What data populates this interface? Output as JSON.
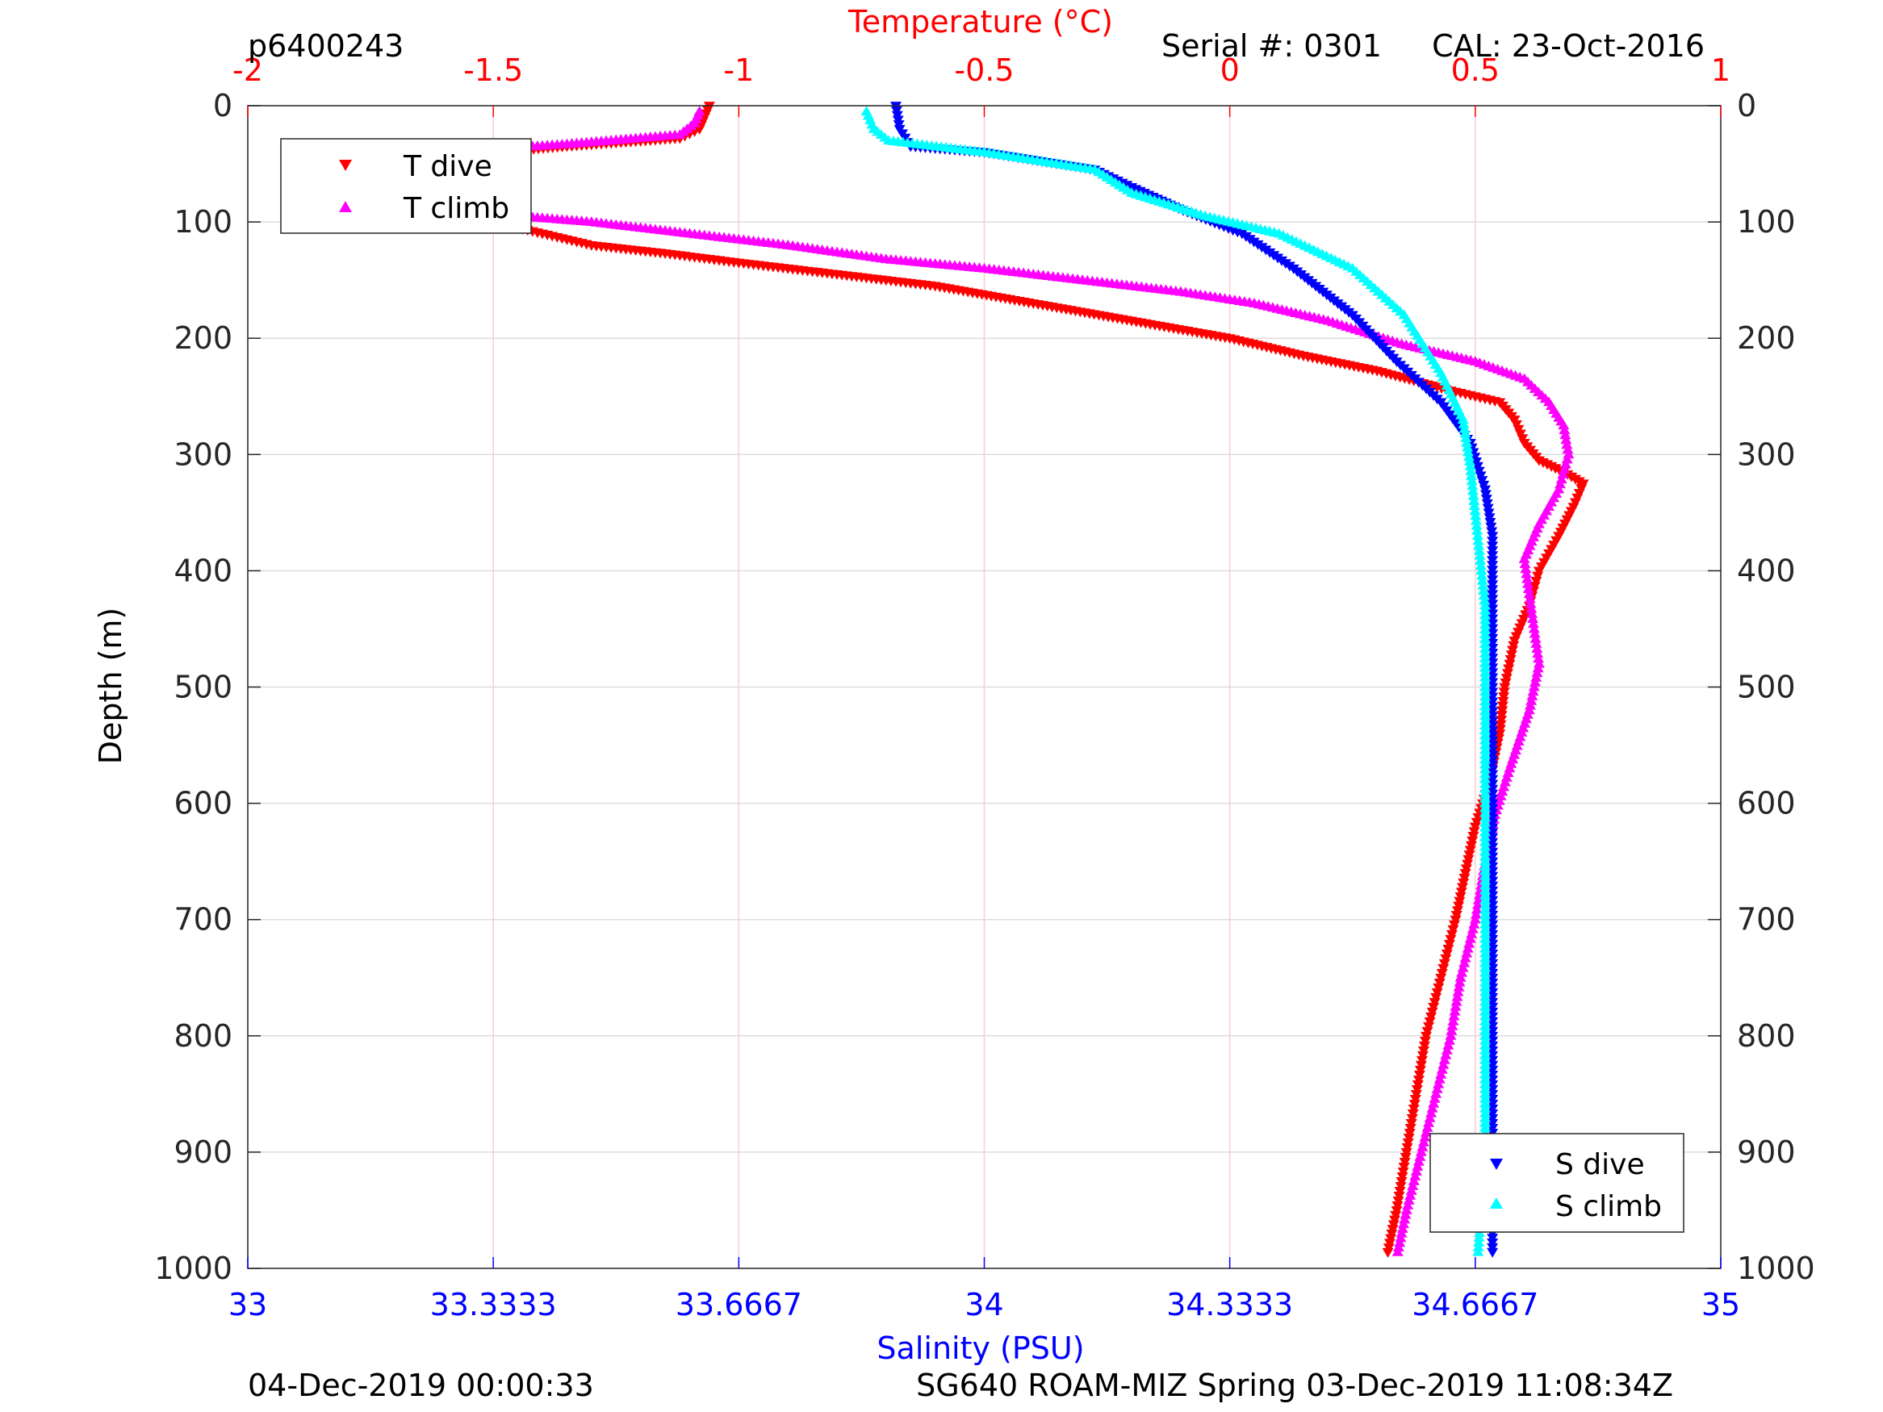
{
  "chart_data": {
    "type": "scatter",
    "figure_id": "p6400243",
    "serial": "Serial #: 0301",
    "calibration": "CAL: 23-Oct-2016",
    "footer_left": "04-Dec-2019 00:00:33",
    "footer_right": "SG640 ROAM-MIZ Spring 03-Dec-2019 11:08:34Z",
    "ylabel": "Depth (m)",
    "ylim": [
      0,
      1000
    ],
    "y_reversed": true,
    "y_ticks": [
      "0",
      "100",
      "200",
      "300",
      "400",
      "500",
      "600",
      "700",
      "800",
      "900",
      "1000"
    ],
    "y_tick_values": [
      0,
      100,
      200,
      300,
      400,
      500,
      600,
      700,
      800,
      900,
      1000
    ],
    "temperature_axis": {
      "label": "Temperature (°C)",
      "position": "top",
      "color": "#ff0000",
      "xlim": [
        -2,
        1
      ],
      "ticks": [
        "-2",
        "-1.5",
        "-1",
        "-0.5",
        "0",
        "0.5",
        "1"
      ],
      "tick_values": [
        -2,
        -1.5,
        -1,
        -0.5,
        0,
        0.5,
        1
      ],
      "grid": true
    },
    "salinity_axis": {
      "label": "Salinity (PSU)",
      "position": "bottom",
      "color": "#0000ff",
      "xlim": [
        33,
        35
      ],
      "ticks": [
        "33",
        "33.3333",
        "33.6667",
        "34",
        "34.3333",
        "34.6667",
        "35"
      ],
      "tick_values": [
        33,
        33.3333,
        33.6667,
        34,
        34.3333,
        34.6667,
        35
      ]
    },
    "legend_temperature": {
      "placement": "top-left",
      "entries": [
        "T dive",
        "T climb"
      ]
    },
    "legend_salinity": {
      "placement": "bottom-right",
      "entries": [
        "S dive",
        "S climb"
      ]
    },
    "series": [
      {
        "name": "T dive",
        "axis": "temperature",
        "color": "#ff0000",
        "marker": "triangle-down",
        "points": [
          [
            -1.06,
            0
          ],
          [
            -1.07,
            10
          ],
          [
            -1.08,
            20
          ],
          [
            -1.12,
            28
          ],
          [
            -1.35,
            35
          ],
          [
            -1.65,
            45
          ],
          [
            -1.72,
            52
          ],
          [
            -1.7,
            62
          ],
          [
            -1.68,
            70
          ],
          [
            -1.66,
            80
          ],
          [
            -1.6,
            92
          ],
          [
            -1.5,
            100
          ],
          [
            -1.4,
            110
          ],
          [
            -1.3,
            120
          ],
          [
            -1.15,
            127
          ],
          [
            -1,
            135
          ],
          [
            -0.8,
            145
          ],
          [
            -0.6,
            155
          ],
          [
            -0.4,
            170
          ],
          [
            -0.2,
            185
          ],
          [
            0,
            200
          ],
          [
            0.15,
            215
          ],
          [
            0.3,
            228
          ],
          [
            0.45,
            245
          ],
          [
            0.55,
            255
          ],
          [
            0.58,
            270
          ],
          [
            0.6,
            290
          ],
          [
            0.63,
            305
          ],
          [
            0.68,
            315
          ],
          [
            0.72,
            325
          ],
          [
            0.7,
            345
          ],
          [
            0.67,
            370
          ],
          [
            0.63,
            400
          ],
          [
            0.61,
            430
          ],
          [
            0.58,
            460
          ],
          [
            0.56,
            500
          ],
          [
            0.55,
            540
          ],
          [
            0.53,
            580
          ],
          [
            0.5,
            620
          ],
          [
            0.48,
            660
          ],
          [
            0.46,
            700
          ],
          [
            0.43,
            750
          ],
          [
            0.4,
            800
          ],
          [
            0.38,
            850
          ],
          [
            0.36,
            900
          ],
          [
            0.34,
            950
          ],
          [
            0.32,
            990
          ]
        ]
      },
      {
        "name": "T climb",
        "axis": "temperature",
        "color": "#ff00ff",
        "marker": "triangle-up",
        "points": [
          [
            -1.08,
            5
          ],
          [
            -1.09,
            15
          ],
          [
            -1.12,
            25
          ],
          [
            -1.35,
            33
          ],
          [
            -1.6,
            40
          ],
          [
            -1.7,
            50
          ],
          [
            -1.74,
            60
          ],
          [
            -1.73,
            70
          ],
          [
            -1.7,
            80
          ],
          [
            -1.6,
            88
          ],
          [
            -1.45,
            95
          ],
          [
            -1.3,
            100
          ],
          [
            -1.1,
            110
          ],
          [
            -0.9,
            120
          ],
          [
            -0.7,
            132
          ],
          [
            -0.5,
            140
          ],
          [
            -0.3,
            150
          ],
          [
            -0.1,
            160
          ],
          [
            0.05,
            170
          ],
          [
            0.2,
            185
          ],
          [
            0.35,
            205
          ],
          [
            0.5,
            220
          ],
          [
            0.6,
            235
          ],
          [
            0.65,
            255
          ],
          [
            0.68,
            275
          ],
          [
            0.69,
            300
          ],
          [
            0.67,
            330
          ],
          [
            0.63,
            360
          ],
          [
            0.6,
            390
          ],
          [
            0.61,
            420
          ],
          [
            0.62,
            450
          ],
          [
            0.63,
            480
          ],
          [
            0.61,
            520
          ],
          [
            0.57,
            570
          ],
          [
            0.54,
            610
          ],
          [
            0.52,
            650
          ],
          [
            0.5,
            700
          ],
          [
            0.47,
            750
          ],
          [
            0.45,
            800
          ],
          [
            0.42,
            850
          ],
          [
            0.39,
            900
          ],
          [
            0.36,
            950
          ],
          [
            0.34,
            990
          ]
        ]
      },
      {
        "name": "S dive",
        "axis": "salinity",
        "color": "#0000ff",
        "marker": "triangle-down",
        "points": [
          [
            33.88,
            0
          ],
          [
            33.885,
            20
          ],
          [
            33.9,
            35
          ],
          [
            34,
            40
          ],
          [
            34.15,
            55
          ],
          [
            34.2,
            70
          ],
          [
            34.27,
            90
          ],
          [
            34.35,
            110
          ],
          [
            34.42,
            140
          ],
          [
            34.5,
            180
          ],
          [
            34.56,
            220
          ],
          [
            34.62,
            255
          ],
          [
            34.66,
            290
          ],
          [
            34.68,
            330
          ],
          [
            34.69,
            370
          ],
          [
            34.69,
            420
          ],
          [
            34.69,
            500
          ],
          [
            34.69,
            600
          ],
          [
            34.69,
            700
          ],
          [
            34.69,
            800
          ],
          [
            34.69,
            900
          ],
          [
            34.69,
            990
          ]
        ]
      },
      {
        "name": "S climb",
        "axis": "salinity",
        "color": "#00ffff",
        "marker": "triangle-up",
        "points": [
          [
            33.84,
            5
          ],
          [
            33.85,
            20
          ],
          [
            33.87,
            30
          ],
          [
            34,
            40
          ],
          [
            34.15,
            55
          ],
          [
            34.2,
            75
          ],
          [
            34.3,
            95
          ],
          [
            34.4,
            110
          ],
          [
            34.5,
            140
          ],
          [
            34.57,
            180
          ],
          [
            34.62,
            230
          ],
          [
            34.65,
            270
          ],
          [
            34.66,
            310
          ],
          [
            34.67,
            370
          ],
          [
            34.68,
            430
          ],
          [
            34.68,
            500
          ],
          [
            34.68,
            600
          ],
          [
            34.68,
            700
          ],
          [
            34.68,
            800
          ],
          [
            34.68,
            900
          ],
          [
            34.67,
            990
          ]
        ]
      }
    ]
  }
}
